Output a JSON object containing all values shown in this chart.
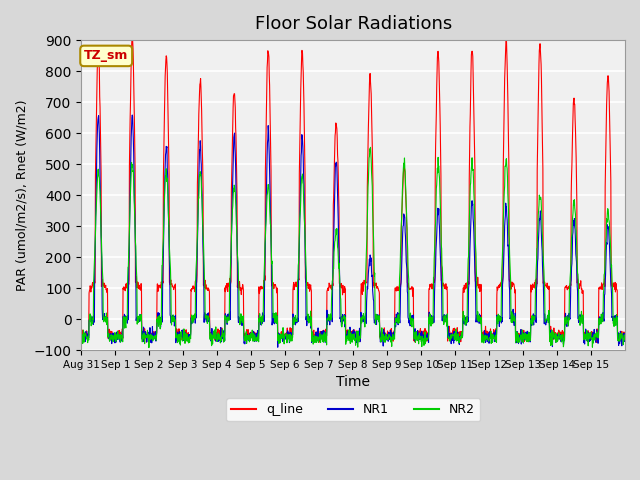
{
  "title": "Floor Solar Radiations",
  "xlabel": "Time",
  "ylabel": "PAR (umol/m2/s), Rnet (W/m2)",
  "ylim": [
    -100,
    900
  ],
  "yticks": [
    -100,
    0,
    100,
    200,
    300,
    400,
    500,
    600,
    700,
    800,
    900
  ],
  "fig_bg_color": "#d8d8d8",
  "plot_bg_color": "#f0f0f0",
  "legend_labels": [
    "q_line",
    "NR1",
    "NR2"
  ],
  "legend_colors": [
    "#ff0000",
    "#0000cc",
    "#00cc00"
  ],
  "tz_label": "TZ_sm",
  "tz_box_color": "#ffffcc",
  "tz_text_color": "#cc0000",
  "tz_edge_color": "#aa8800",
  "n_days": 16,
  "pts_per_day": 96,
  "q_peaks": [
    775,
    815,
    765,
    680,
    645,
    775,
    775,
    540,
    695,
    400,
    775,
    780,
    810,
    800,
    625,
    700
  ],
  "nr1_peaks": [
    660,
    660,
    560,
    560,
    600,
    600,
    590,
    510,
    200,
    330,
    350,
    380,
    360,
    340,
    320,
    300
  ],
  "nr2_peaks": [
    480,
    500,
    480,
    470,
    430,
    430,
    460,
    280,
    550,
    505,
    505,
    505,
    510,
    400,
    380,
    350
  ],
  "tick_labels": [
    "Aug 31",
    "Sep 1",
    "Sep 2",
    "Sep 3",
    "Sep 4",
    "Sep 5",
    "Sep 6",
    "Sep 7",
    "Sep 8",
    "Sep 9",
    "Sep 10",
    "Sep 11",
    "Sep 12",
    "Sep 13",
    "Sep 14",
    "Sep 15"
  ]
}
